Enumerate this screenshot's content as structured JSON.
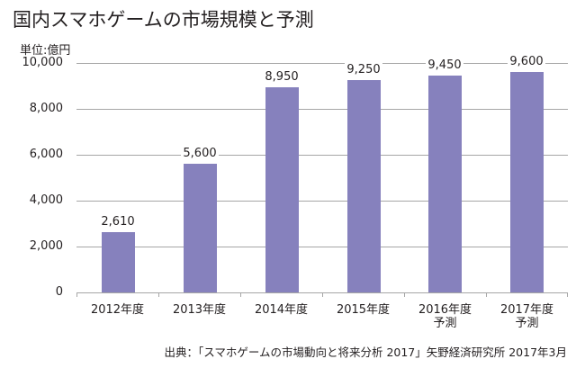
{
  "chart_data": {
    "type": "bar",
    "title": "国内スマホゲームの市場規模と予測",
    "ylabel": "単位:億円",
    "xlabel": "",
    "categories": [
      "2012年度",
      "2013年度",
      "2014年度",
      "2015年度",
      "2016年度\n予測",
      "2017年度\n予測"
    ],
    "values": [
      2610,
      5600,
      8950,
      9250,
      9450,
      9600
    ],
    "value_labels": [
      "2,610",
      "5,600",
      "8,950",
      "9,250",
      "9,450",
      "9,600"
    ],
    "ylim": [
      0,
      10000
    ],
    "yticks": [
      "0",
      "2,000",
      "4,000",
      "6,000",
      "8,000",
      "10,000"
    ],
    "grid": true,
    "bar_color": "#8681bd",
    "source": "出典：「スマホゲームの市場動向と将来分析 2017」矢野経済研究所 2017年3月"
  },
  "title": "国内スマホゲームの市場規模と予測",
  "unit": "単位:億円",
  "yticks": [
    "10,000",
    "8,000",
    "6,000",
    "4,000",
    "2,000",
    "0"
  ],
  "bars": [
    {
      "value": 2610,
      "label": "2,610",
      "cat1": "2012年度",
      "cat2": ""
    },
    {
      "value": 5600,
      "label": "5,600",
      "cat1": "2013年度",
      "cat2": ""
    },
    {
      "value": 8950,
      "label": "8,950",
      "cat1": "2014年度",
      "cat2": ""
    },
    {
      "value": 9250,
      "label": "9,250",
      "cat1": "2015年度",
      "cat2": ""
    },
    {
      "value": 9450,
      "label": "9,450",
      "cat1": "2016年度",
      "cat2": "予測"
    },
    {
      "value": 9600,
      "label": "9,600",
      "cat1": "2017年度",
      "cat2": "予測"
    }
  ],
  "source": "出典：「スマホゲームの市場動向と将来分析 2017」矢野経済研究所 2017年3月"
}
